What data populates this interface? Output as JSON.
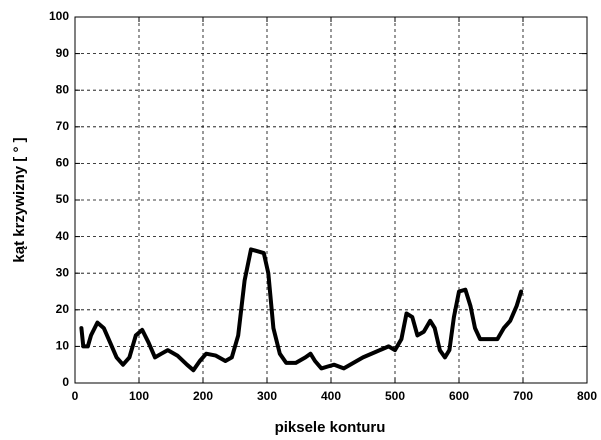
{
  "chart_data": {
    "type": "line",
    "xlabel": "piksele konturu",
    "ylabel": "kąt krzywizny  [ ° ]",
    "x": [
      10,
      13,
      20,
      25,
      35,
      45,
      55,
      65,
      75,
      85,
      95,
      105,
      115,
      125,
      135,
      145,
      160,
      175,
      185,
      195,
      205,
      220,
      235,
      245,
      255,
      265,
      275,
      285,
      295,
      302,
      310,
      320,
      330,
      345,
      360,
      368,
      375,
      385,
      395,
      405,
      420,
      435,
      450,
      470,
      490,
      500,
      510,
      518,
      527,
      535,
      545,
      555,
      562,
      570,
      578,
      585,
      592,
      600,
      610,
      618,
      625,
      633,
      645,
      660,
      670,
      680,
      690,
      697
    ],
    "values": [
      15,
      10,
      10,
      13,
      16.5,
      15,
      11,
      7,
      5,
      7,
      13,
      14.5,
      11,
      7,
      8,
      9,
      7.5,
      5,
      3.5,
      6,
      8,
      7.5,
      6,
      7,
      13,
      28,
      36.5,
      36,
      35.5,
      30,
      15,
      8,
      5.5,
      5.5,
      7,
      8,
      6,
      4,
      4.5,
      5,
      4,
      5.5,
      7,
      8.5,
      10,
      9,
      12,
      19,
      18,
      13,
      14,
      17,
      15,
      9,
      7,
      9,
      18,
      25,
      25.5,
      21,
      15,
      12,
      12,
      12,
      15,
      17,
      21,
      25
    ],
    "color": "#000000",
    "xlim": [
      0,
      800
    ],
    "xticks": [
      0,
      100,
      200,
      300,
      400,
      500,
      600,
      700,
      800
    ],
    "ylim": [
      0,
      100
    ],
    "yticks": [
      0,
      10,
      20,
      30,
      40,
      50,
      60,
      70,
      80,
      90,
      100
    ],
    "grid": true
  }
}
